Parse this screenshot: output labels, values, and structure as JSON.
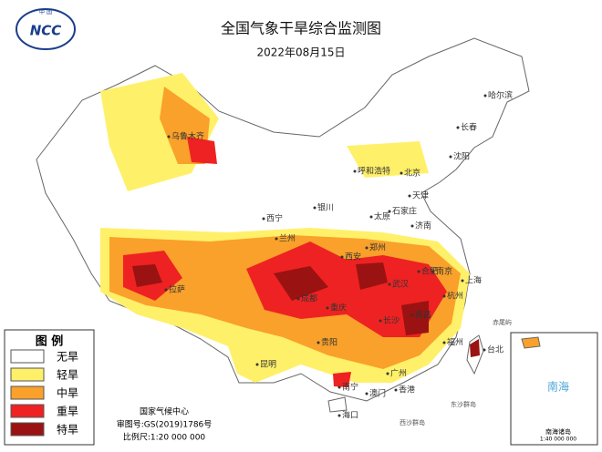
{
  "header": {
    "title": "全国气象干旱综合监测图",
    "date": "2022年08月15日",
    "logo_top": "中 国",
    "logo_abbr": "NCC"
  },
  "legend": {
    "title": "图 例",
    "items": [
      {
        "label": "无旱",
        "color": "#ffffff"
      },
      {
        "label": "轻旱",
        "color": "#fff06a"
      },
      {
        "label": "中旱",
        "color": "#f9a12a"
      },
      {
        "label": "重旱",
        "color": "#ee2222"
      },
      {
        "label": "特旱",
        "color": "#9b1212"
      }
    ]
  },
  "cities": [
    "哈尔滨",
    "长春",
    "沈阳",
    "乌鲁木齐",
    "呼和浩特",
    "北京",
    "天津",
    "银川",
    "石家庄",
    "太原",
    "西宁",
    "兰州",
    "济南",
    "郑州",
    "西安",
    "合肥",
    "南京",
    "上海",
    "拉萨",
    "成都",
    "武汉",
    "杭州",
    "重庆",
    "长沙",
    "南昌",
    "贵阳",
    "福州",
    "台北",
    "昆明",
    "广州",
    "南宁",
    "澳门",
    "香港",
    "海口",
    "东沙群岛",
    "西沙群岛",
    "赤尾屿"
  ],
  "inset": {
    "sea": "南海",
    "label": "南海诸岛",
    "scale": "1:40 000 000"
  },
  "footer": {
    "org": "国家气候中心",
    "review": "审图号:GS(2019)1786号",
    "scale": "比例尺:1:20 000 000"
  }
}
